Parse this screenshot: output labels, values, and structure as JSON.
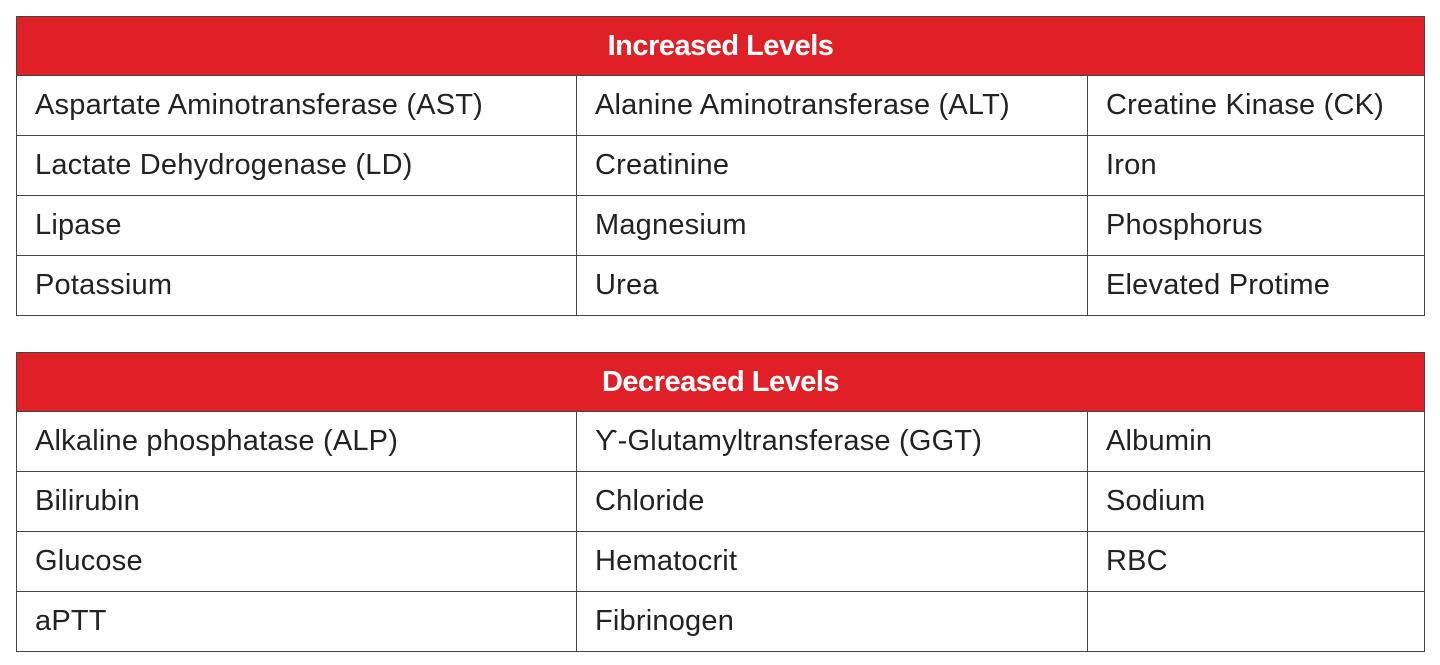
{
  "increased": {
    "title": "Increased Levels",
    "rows": [
      [
        "Aspartate Aminotransferase (AST)",
        "Alanine Aminotransferase (ALT)",
        "Creatine Kinase (CK)"
      ],
      [
        "Lactate Dehydrogenase (LD)",
        "Creatinine",
        "Iron"
      ],
      [
        "Lipase",
        "Magnesium",
        "Phosphorus"
      ],
      [
        "Potassium",
        "Urea",
        "Elevated Protime"
      ]
    ]
  },
  "decreased": {
    "title": "Decreased Levels",
    "rows": [
      [
        "Alkaline phosphatase (ALP)",
        "ϒ-Glutamyltransferase (GGT)",
        "Albumin"
      ],
      [
        "Bilirubin",
        "Chloride",
        "Sodium"
      ],
      [
        "Glucose",
        "Hematocrit",
        "RBC"
      ],
      [
        "aPTT",
        "Fibrinogen",
        ""
      ]
    ]
  },
  "colors": {
    "header_background": "#e11f26",
    "header_text": "#ffffff",
    "border": "#444444",
    "cell_text": "#222222"
  }
}
